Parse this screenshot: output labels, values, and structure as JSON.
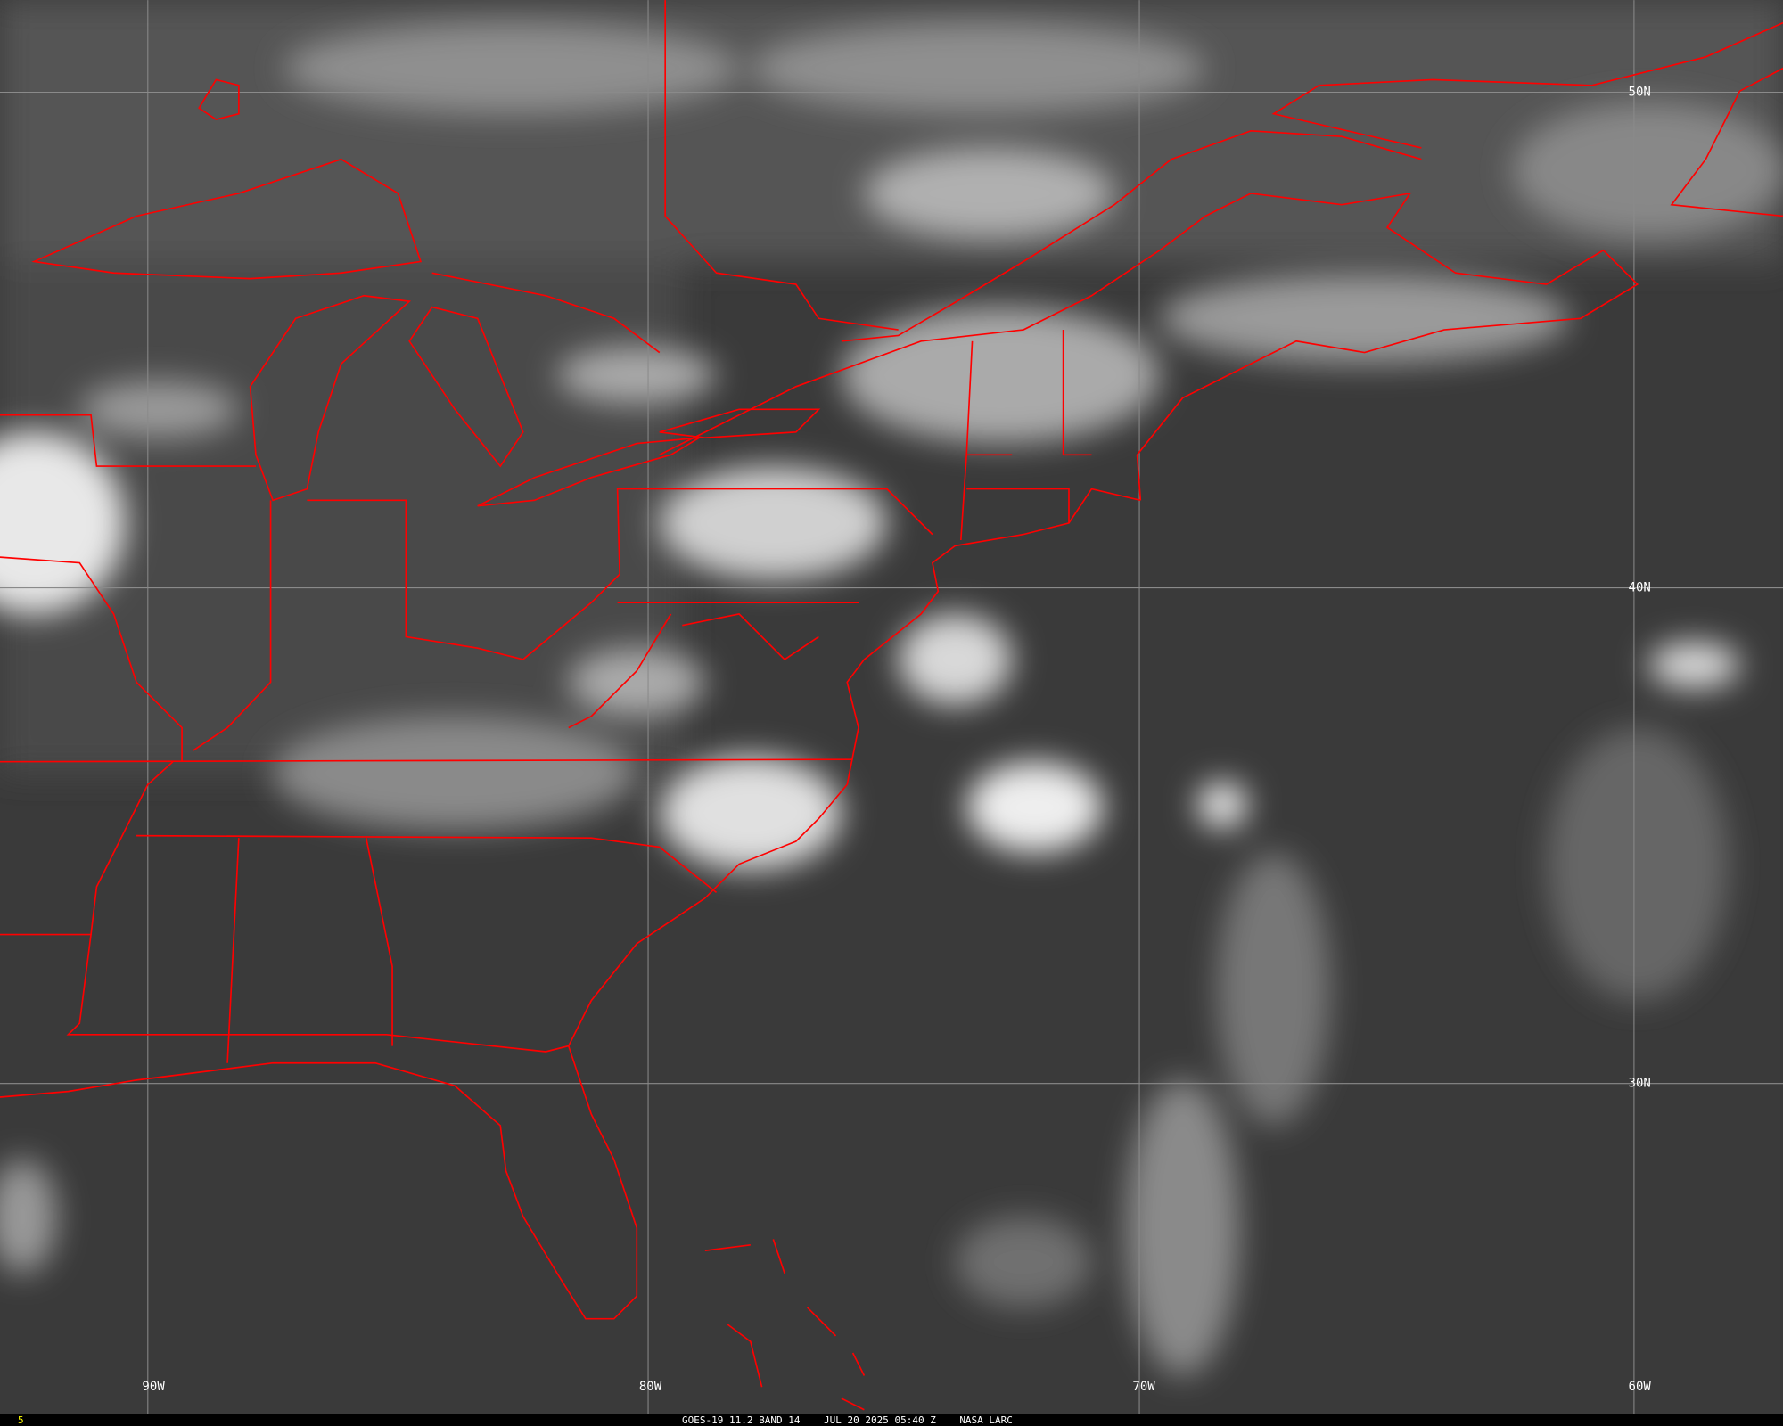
{
  "map": {
    "background_color": "#3c3c3c",
    "border_color": "#ff0000",
    "grid_color": "#8a8a8a",
    "longitude_labels": [
      "90W",
      "80W",
      "70W",
      "60W"
    ],
    "latitude_labels": [
      "50N",
      "40N",
      "30N"
    ]
  },
  "status_bar": {
    "frame_number": "5",
    "satellite": "GOES-19",
    "band": "11.2 BAND 14",
    "date": "JUL 20 2025",
    "time": "05:40 Z",
    "source": "NASA LARC"
  }
}
